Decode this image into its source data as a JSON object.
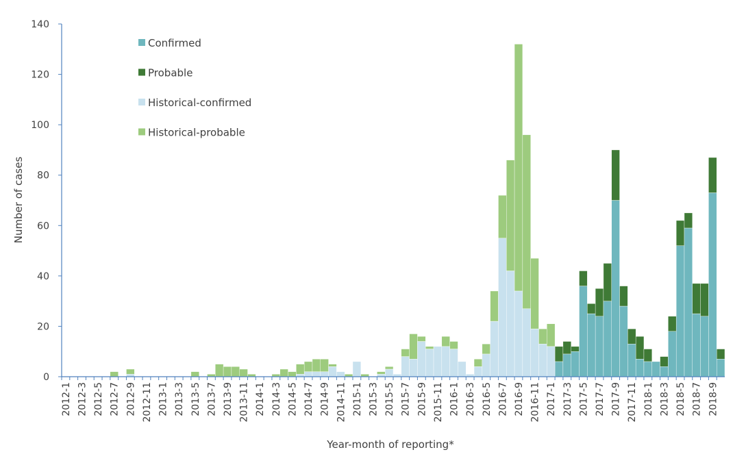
{
  "chart_data": {
    "type": "stacked-bar",
    "x_label": "Year-month of reporting*",
    "y_label": "Number of cases",
    "categories": [
      "2012-1",
      null,
      "2012-3",
      null,
      "2012-5",
      null,
      "2012-7",
      null,
      "2012-9",
      null,
      "2012-11",
      null,
      "2013-1",
      null,
      "2013-3",
      null,
      "2013-5",
      null,
      "2013-7",
      null,
      "2013-9",
      null,
      "2013-11",
      null,
      "2014-1",
      null,
      "2014-3",
      null,
      "2014-5",
      null,
      "2014-7",
      null,
      "2014-9",
      null,
      "2014-11",
      null,
      "2015-1",
      null,
      "2015-3",
      null,
      "2015-5",
      null,
      "2015-7",
      null,
      "2015-9",
      null,
      "2015-11",
      null,
      "2016-1",
      null,
      "2016-3",
      null,
      "2016-5",
      null,
      "2016-7",
      null,
      "2016-9",
      null,
      "2016-11",
      null,
      "2017-1",
      null,
      "2017-3",
      null,
      "2017-5",
      null,
      "2017-7",
      null,
      "2017-9",
      null,
      "2017-11",
      null,
      "2018-1",
      null,
      "2018-3",
      null,
      "2018-5",
      null,
      "2018-7",
      null,
      "2018-9",
      null
    ],
    "series": [
      {
        "name": "Confirmed",
        "color": "#6fb7be",
        "values": [
          0,
          0,
          0,
          0,
          0,
          0,
          0,
          0,
          0,
          0,
          0,
          0,
          0,
          0,
          0,
          0,
          0,
          0,
          0,
          0,
          0,
          0,
          0,
          0,
          0,
          0,
          0,
          0,
          0,
          0,
          0,
          0,
          0,
          0,
          0,
          0,
          0,
          0,
          0,
          0,
          0,
          0,
          0,
          0,
          0,
          0,
          0,
          0,
          0,
          0,
          0,
          0,
          0,
          0,
          0,
          0,
          0,
          0,
          0,
          0,
          0,
          6,
          9,
          10,
          36,
          25,
          24,
          30,
          70,
          28,
          13,
          7,
          6,
          6,
          4,
          18,
          52,
          59,
          25,
          24,
          73,
          7
        ]
      },
      {
        "name": "Probable",
        "color": "#3f7a36",
        "values": [
          0,
          0,
          0,
          0,
          0,
          0,
          0,
          0,
          0,
          0,
          0,
          0,
          0,
          0,
          0,
          0,
          0,
          0,
          0,
          0,
          0,
          0,
          0,
          0,
          0,
          0,
          0,
          0,
          0,
          0,
          0,
          0,
          0,
          0,
          0,
          0,
          0,
          0,
          0,
          0,
          0,
          0,
          0,
          0,
          0,
          0,
          0,
          0,
          0,
          0,
          0,
          0,
          0,
          0,
          0,
          0,
          0,
          0,
          0,
          0,
          0,
          6,
          5,
          2,
          6,
          4,
          11,
          15,
          20,
          8,
          6,
          9,
          5,
          0,
          4,
          6,
          10,
          6,
          12,
          13,
          14,
          4
        ]
      },
      {
        "name": "Historical-confirmed",
        "color": "#c8e1ee",
        "values": [
          0,
          0,
          0,
          0,
          0,
          0,
          0,
          0,
          1,
          0,
          0,
          0,
          0,
          0,
          0,
          0,
          0,
          0,
          0,
          0,
          0,
          0,
          0,
          0,
          0,
          0,
          0,
          0,
          0,
          1,
          2,
          2,
          2,
          4,
          2,
          0,
          6,
          0,
          0,
          1,
          3,
          1,
          8,
          7,
          14,
          11,
          12,
          12,
          11,
          6,
          1,
          4,
          9,
          22,
          55,
          42,
          34,
          27,
          19,
          13,
          12,
          0,
          0,
          0,
          0,
          0,
          0,
          0,
          0,
          0,
          0,
          0,
          0,
          0,
          0,
          0,
          0,
          0,
          0,
          0,
          0,
          0
        ]
      },
      {
        "name": "Historical-probable",
        "color": "#9dcb7e",
        "values": [
          0,
          0,
          0,
          0,
          0,
          0,
          2,
          0,
          2,
          0,
          0,
          0,
          0,
          0,
          0,
          0,
          2,
          0,
          1,
          5,
          4,
          4,
          3,
          1,
          0,
          0,
          1,
          3,
          2,
          4,
          4,
          5,
          5,
          1,
          0,
          1,
          0,
          1,
          0,
          1,
          1,
          0,
          3,
          10,
          2,
          1,
          0,
          4,
          3,
          0,
          0,
          3,
          4,
          12,
          17,
          44,
          98,
          69,
          28,
          6,
          9,
          0,
          0,
          0,
          0,
          0,
          0,
          0,
          0,
          0,
          0,
          0,
          0,
          0,
          0,
          0,
          0,
          0,
          0,
          0,
          0,
          0
        ]
      }
    ],
    "ylim": [
      0,
      140
    ],
    "yticks": [
      0,
      20,
      40,
      60,
      80,
      100,
      120,
      140
    ],
    "legend": "top-left",
    "grid": false
  }
}
